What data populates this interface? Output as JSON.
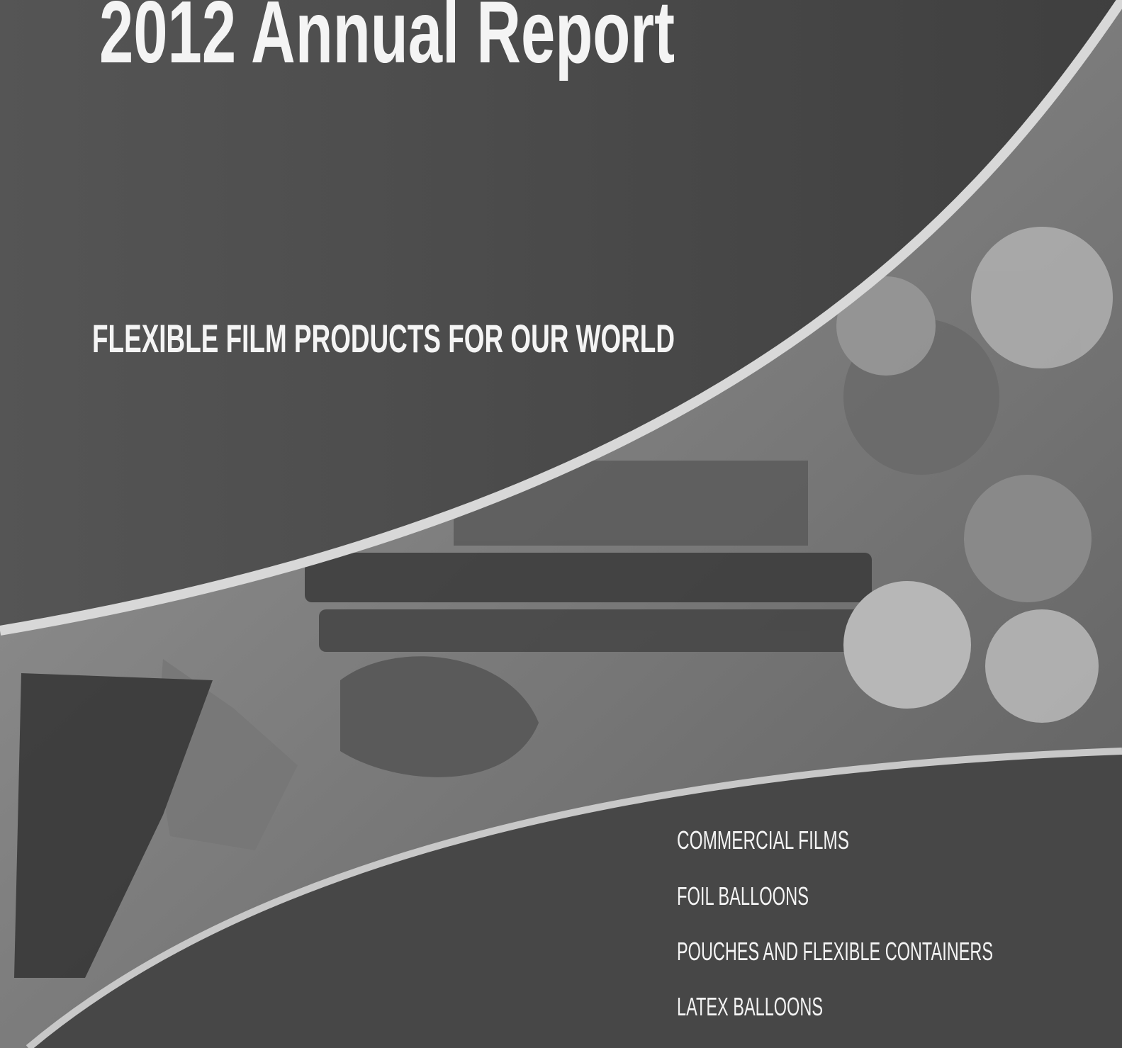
{
  "header": {
    "title": "2012 Annual Report",
    "subtitle": "FLEXIBLE FILM PRODUCTS FOR OUR WORLD"
  },
  "products": [
    "COMMERCIAL FILMS",
    "FOIL BALLOONS",
    "POUCHES AND FLEXIBLE CONTAINERS",
    "LATEX BALLOONS"
  ]
}
